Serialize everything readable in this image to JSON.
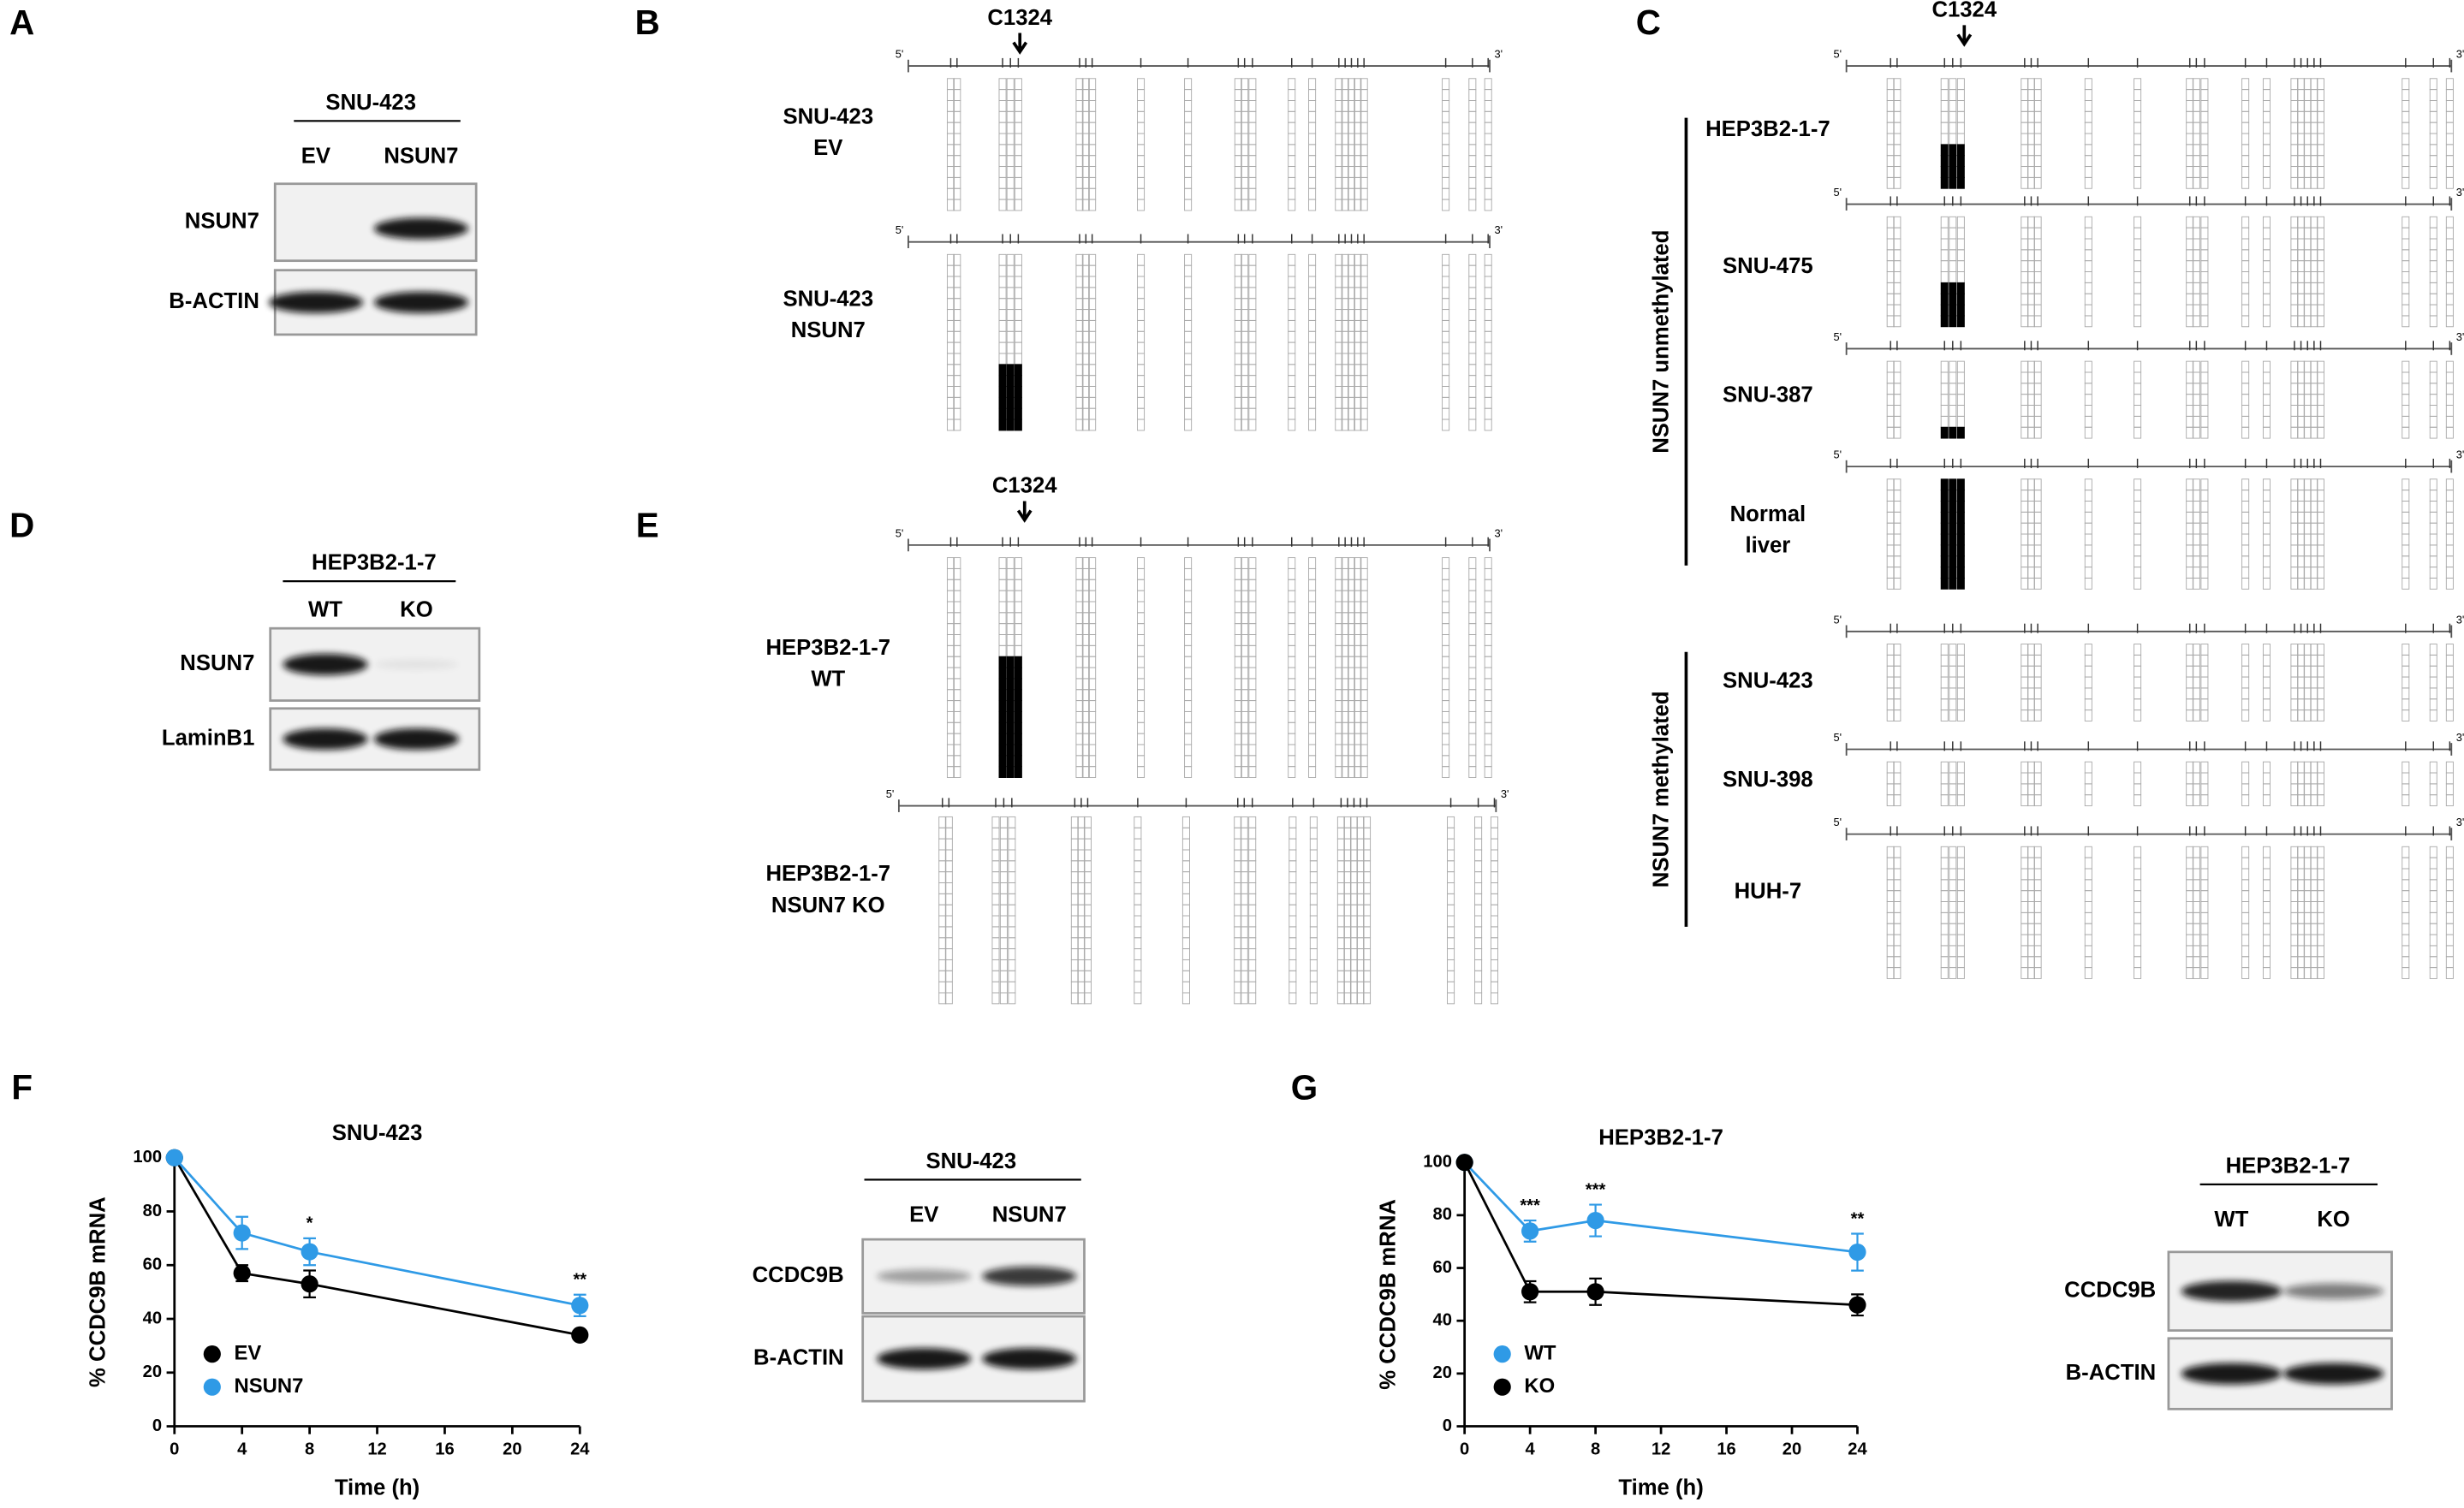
{
  "panel_letters": [
    "A",
    "B",
    "C",
    "D",
    "E",
    "F",
    "G"
  ],
  "blot_a": {
    "group": "SNU-423",
    "lanes": [
      "EV",
      "NSUN7"
    ],
    "rows": [
      "NSUN7",
      "B-ACTIN"
    ]
  },
  "blot_d": {
    "group": "HEP3B2-1-7",
    "lanes": [
      "WT",
      "KO"
    ],
    "rows": [
      "NSUN7",
      "LaminB1"
    ]
  },
  "blot_f": {
    "group": "SNU-423",
    "lanes": [
      "EV",
      "NSUN7"
    ],
    "rows": [
      "CCDC9B",
      "B-ACTIN"
    ]
  },
  "blot_g": {
    "group": "HEP3B2-1-7",
    "lanes": [
      "WT",
      "KO"
    ],
    "rows": [
      "CCDC9B",
      "B-ACTIN"
    ]
  },
  "site_label": "C1324",
  "five_prime": "5'",
  "three_prime": "3'",
  "panel_b": {
    "samples": [
      [
        "SNU-423",
        "EV"
      ],
      [
        "SNU-423",
        "NSUN7"
      ]
    ]
  },
  "panel_e": {
    "samples": [
      [
        "HEP3B2-1-7",
        "WT"
      ],
      [
        "HEP3B2-1-7",
        "NSUN7 KO"
      ]
    ]
  },
  "panel_c": {
    "groups": [
      {
        "label": "NSUN7 unmethylated",
        "samples": [
          [
            "HEP3B2-1-7"
          ],
          [
            "SNU-475"
          ],
          [
            "SNU-387"
          ],
          [
            "Normal",
            "liver"
          ]
        ]
      },
      {
        "label": "NSUN7 methylated",
        "samples": [
          [
            "SNU-423"
          ],
          [
            "SNU-398"
          ],
          [
            "HUH-7"
          ]
        ]
      }
    ]
  },
  "chart_data": [
    {
      "type": "line",
      "title": "SNU-423",
      "x_label": "Time (h)",
      "y_label": "% CCDC9B mRNA",
      "x": [
        0,
        4,
        8,
        24
      ],
      "xlim": [
        0,
        24
      ],
      "xticks": [
        0,
        4,
        8,
        12,
        16,
        20,
        24
      ],
      "ylim": [
        0,
        100
      ],
      "yticks": [
        0,
        20,
        40,
        60,
        80,
        100
      ],
      "legend": "lower left",
      "series": [
        {
          "name": "EV",
          "color": "#000000",
          "values": [
            100,
            57,
            53,
            34
          ],
          "errors": [
            0,
            3,
            5,
            1
          ]
        },
        {
          "name": "NSUN7",
          "color": "#2f9ae6",
          "values": [
            100,
            72,
            65,
            45
          ],
          "errors": [
            0,
            6,
            5,
            4
          ]
        }
      ],
      "annotations": [
        {
          "x": 8,
          "label": "*"
        },
        {
          "x": 24,
          "label": "**"
        }
      ]
    },
    {
      "type": "line",
      "title": "HEP3B2-1-7",
      "x_label": "Time (h)",
      "y_label": "% CCDC9B mRNA",
      "x": [
        0,
        4,
        8,
        24
      ],
      "xlim": [
        0,
        24
      ],
      "xticks": [
        0,
        4,
        8,
        12,
        16,
        20,
        24
      ],
      "ylim": [
        0,
        100
      ],
      "yticks": [
        0,
        20,
        40,
        60,
        80,
        100
      ],
      "legend": "lower left",
      "series": [
        {
          "name": "WT",
          "color": "#2f9ae6",
          "values": [
            100,
            74,
            78,
            66
          ],
          "errors": [
            0,
            4,
            6,
            7
          ]
        },
        {
          "name": "KO",
          "color": "#000000",
          "values": [
            100,
            51,
            51,
            46
          ],
          "errors": [
            0,
            4,
            5,
            4
          ]
        }
      ],
      "annotations": [
        {
          "x": 4,
          "label": "***"
        },
        {
          "x": 8,
          "label": "***"
        },
        {
          "x": 24,
          "label": "**"
        }
      ]
    }
  ]
}
